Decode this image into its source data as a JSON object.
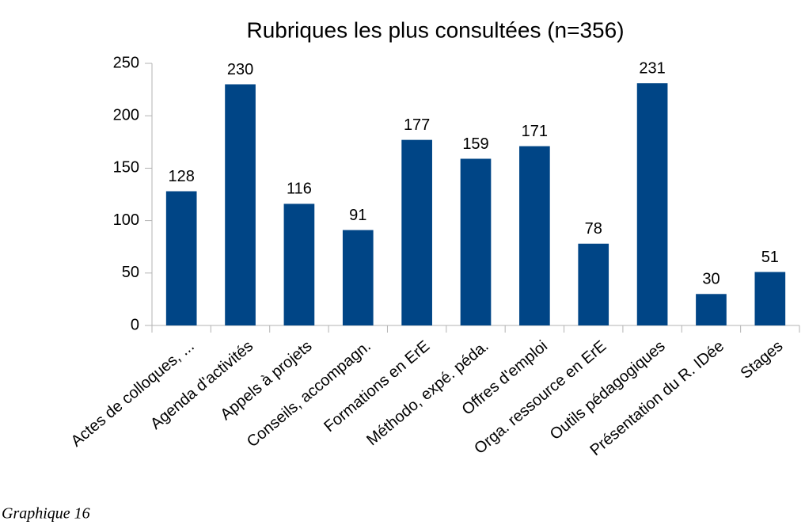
{
  "chart_data": {
    "type": "bar",
    "title": "Rubriques les plus consultées (n=356)",
    "categories": [
      "Actes de colloques, ...",
      "Agenda d'activités",
      "Appels à projets",
      "Conseils, accompagn.",
      "Formations en ErE",
      "Méthodo, expé. péda.",
      "Offres d'emploi",
      "Orga. ressource en ErE",
      "Outils pédagogiques",
      "Présentation du R. IDée",
      "Stages"
    ],
    "values": [
      128,
      230,
      116,
      91,
      177,
      159,
      171,
      78,
      231,
      30,
      51
    ],
    "color": "#004586",
    "ylim": [
      0,
      250
    ],
    "yticks": [
      0,
      50,
      100,
      150,
      200,
      250
    ],
    "grid": false
  },
  "caption": "Graphique 16"
}
